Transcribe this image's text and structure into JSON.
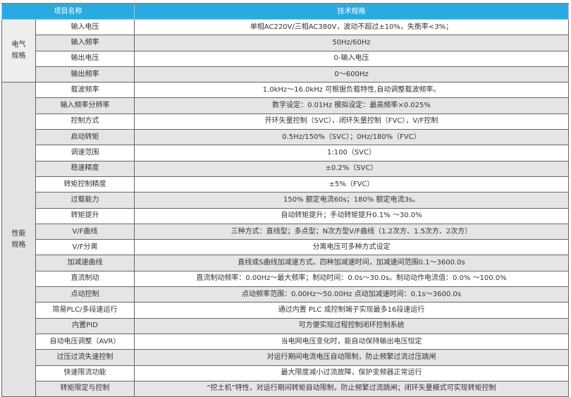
{
  "header": {
    "item_name": "项目名称",
    "spec": "技术规格"
  },
  "colors": {
    "header_bg": "#29abe2",
    "stripe": "#e5e5e5"
  },
  "groups": [
    {
      "label_line1": "电气",
      "label_line2": "规格",
      "rows": [
        {
          "name": "输入电压",
          "spec": "单相AC220V/三相AC380V，波动不超过±10%，失衡率<3%；"
        },
        {
          "name": "输入频率",
          "spec": "50Hz/60Hz"
        },
        {
          "name": "输出电压",
          "spec": "0-输入电压"
        },
        {
          "name": "输出频率",
          "spec": "0～600Hz"
        }
      ]
    },
    {
      "label_line1": "性能",
      "label_line2": "规格",
      "rows": [
        {
          "name": "载波频率",
          "spec": "1.0kHz～16.0kHz 可根据负载特性,自动调整载波频率。"
        },
        {
          "name": "输入频率分辨率",
          "spec": "数字设定：0.01Hz 模拟设定：最高频率×0.025%"
        },
        {
          "name": "控制方式",
          "spec": "开环矢量控制（SVC），闭环矢量控制（FVC），V/F控制"
        },
        {
          "name": "启动转矩",
          "spec": "0.5Hz/150%（SVC）；0Hz/180%（FVC）"
        },
        {
          "name": "调速范围",
          "spec": "1:100（SVC）"
        },
        {
          "name": "稳速精度",
          "spec": "±0.2%（SVC）"
        },
        {
          "name": "转矩控制精度",
          "spec": "±5%（FVC）"
        },
        {
          "name": "过载能力",
          "spec": "150% 额定电流60s；180% 额定电流3s。"
        },
        {
          "name": "转矩提升",
          "spec": "自动转矩提升；手动转矩提升0.1% ～30.0%"
        },
        {
          "name": "V/F曲线",
          "spec": "三种方式：直线型；多点型；N次方型V/F曲线（1.2次方、1.5次方、2次方）"
        },
        {
          "name": "V/F分离",
          "spec": "分离电压可多种方式设定"
        },
        {
          "name": "加减速曲线",
          "spec": "直线或S曲线加减速方式。四种加减速时间，加减速间范围0.1～3600.0s"
        },
        {
          "name": "直流制动",
          "spec": "直流制动频率：0.00Hz～最大频率；制动时间：0.0s～30.0s。制动动作电流值：0.0% ～100.0%"
        },
        {
          "name": "点动控制",
          "spec": "点动频率范围：0.00Hz～50.00Hz 点动加减速时间：0.1s～3600.0s"
        },
        {
          "name": "简易PLC/多段速运行",
          "spec": "通过内置 PLC 或控制端子实现最多16段速运行"
        },
        {
          "name": "内置PID",
          "spec": "可方便实现过程控制闭环控制系统"
        },
        {
          "name": "自动电压调整（AVR）",
          "spec": "当电网电压变化时，能自动保持输出电压恒定"
        },
        {
          "name": "过压过流失速控制",
          "spec": "对运行期间电流电压自动限制，防止频繁过流过压跳闸"
        },
        {
          "name": "快速限流功能",
          "spec": "最大限度减小过流故障，保护变频器正常运行"
        },
        {
          "name": "转矩限定与控制",
          "spec": "“挖土机”特性，对运行期间转矩自动限制，防止频繁过流跳闸；闭环矢量模式可实现转矩控制"
        }
      ]
    }
  ]
}
